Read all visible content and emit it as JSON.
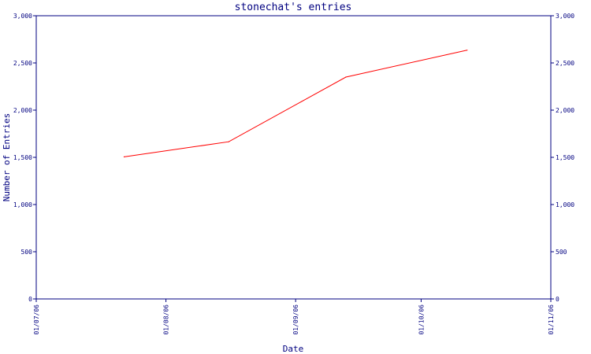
{
  "chart_data": {
    "type": "line",
    "title": "stonechat's entries",
    "xlabel": "Date",
    "ylabel": "Number of Entries",
    "x_ticks": [
      "01/07/06",
      "01/08/06",
      "01/09/06",
      "01/10/06",
      "01/11/06"
    ],
    "x_tick_values": [
      "2006-07-01",
      "2006-08-01",
      "2006-09-01",
      "2006-10-01",
      "2006-11-01"
    ],
    "y_ticks": [
      "0",
      "500",
      "1,000",
      "1,500",
      "2,000",
      "2,500",
      "3,000"
    ],
    "y_tick_values": [
      0,
      500,
      1000,
      1500,
      2000,
      2500,
      3000
    ],
    "xlim": [
      "2006-07-01",
      "2006-11-01"
    ],
    "ylim": [
      0,
      3000
    ],
    "grid": false,
    "secondary_y_axis": true,
    "series": [
      {
        "color": "#ff0000",
        "x": [
          "2006-07-22",
          "2006-08-16",
          "2006-09-13",
          "2006-10-12"
        ],
        "y": [
          1505,
          1665,
          2350,
          2635
        ]
      }
    ]
  }
}
